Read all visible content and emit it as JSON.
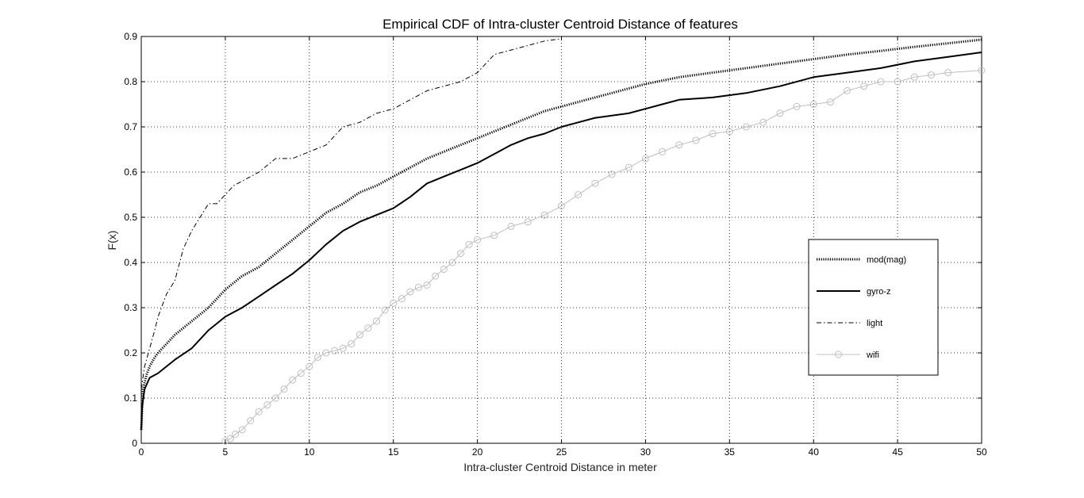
{
  "chart_data": {
    "type": "line",
    "title": "Empirical CDF of Intra-cluster Centroid Distance of features",
    "xlabel": "Intra-cluster Centroid Distance in meter",
    "ylabel": "F(x)",
    "xlim": [
      0,
      50
    ],
    "ylim": [
      0,
      0.9
    ],
    "xticks": [
      0,
      5,
      10,
      15,
      20,
      25,
      30,
      35,
      40,
      45,
      50
    ],
    "yticks": [
      0,
      0.1,
      0.2,
      0.3,
      0.4,
      0.5,
      0.6,
      0.7,
      0.8,
      0.9
    ],
    "grid": true,
    "legend_position": "right",
    "series": [
      {
        "name": "mod(mag)",
        "style": "dotted-thick",
        "color": "#000000",
        "x": [
          0,
          0.1,
          0.3,
          0.5,
          0.8,
          1,
          1.5,
          2,
          3,
          4,
          5,
          6,
          7,
          8,
          9,
          10,
          11,
          12,
          13,
          14,
          15,
          16,
          17,
          18,
          19,
          20,
          21,
          22,
          23,
          24,
          25,
          26,
          27,
          28,
          29,
          30,
          32,
          34,
          36,
          38,
          40,
          42,
          44,
          46,
          48,
          50
        ],
        "y": [
          0.03,
          0.12,
          0.15,
          0.17,
          0.19,
          0.2,
          0.22,
          0.24,
          0.27,
          0.3,
          0.34,
          0.37,
          0.39,
          0.42,
          0.45,
          0.48,
          0.51,
          0.53,
          0.555,
          0.57,
          0.59,
          0.61,
          0.63,
          0.645,
          0.66,
          0.675,
          0.69,
          0.705,
          0.72,
          0.735,
          0.745,
          0.755,
          0.765,
          0.775,
          0.785,
          0.795,
          0.81,
          0.82,
          0.83,
          0.84,
          0.85,
          0.86,
          0.868,
          0.877,
          0.885,
          0.893
        ]
      },
      {
        "name": "gyro-z",
        "style": "solid",
        "color": "#000000",
        "x": [
          0,
          0.05,
          0.2,
          0.5,
          1,
          1.5,
          2,
          3,
          4,
          5,
          6,
          7,
          8,
          9,
          10,
          11,
          12,
          13,
          14,
          15,
          16,
          17,
          18,
          19,
          20,
          21,
          22,
          23,
          24,
          25,
          26,
          27,
          28,
          29,
          30,
          31,
          32,
          34,
          36,
          38,
          40,
          42,
          44,
          46,
          48,
          50
        ],
        "y": [
          0.03,
          0.08,
          0.12,
          0.145,
          0.155,
          0.17,
          0.185,
          0.21,
          0.25,
          0.28,
          0.3,
          0.325,
          0.35,
          0.375,
          0.405,
          0.44,
          0.47,
          0.49,
          0.505,
          0.52,
          0.545,
          0.575,
          0.59,
          0.605,
          0.62,
          0.64,
          0.66,
          0.675,
          0.685,
          0.7,
          0.71,
          0.72,
          0.725,
          0.73,
          0.74,
          0.75,
          0.76,
          0.765,
          0.775,
          0.79,
          0.81,
          0.82,
          0.83,
          0.845,
          0.855,
          0.865
        ]
      },
      {
        "name": "light",
        "style": "dashdot",
        "color": "#000000",
        "x": [
          0,
          0.2,
          0.5,
          0.8,
          1,
          1.5,
          2,
          2.5,
          3,
          3.5,
          4,
          4.5,
          5,
          5.5,
          6,
          7,
          8,
          9,
          10,
          11,
          12,
          13,
          14,
          15,
          16,
          17,
          18,
          19,
          20,
          21,
          22,
          23,
          24,
          25
        ],
        "y": [
          0.12,
          0.17,
          0.21,
          0.25,
          0.28,
          0.33,
          0.36,
          0.43,
          0.47,
          0.5,
          0.53,
          0.53,
          0.55,
          0.57,
          0.58,
          0.6,
          0.63,
          0.63,
          0.645,
          0.66,
          0.7,
          0.71,
          0.73,
          0.74,
          0.76,
          0.78,
          0.79,
          0.8,
          0.82,
          0.86,
          0.87,
          0.88,
          0.89,
          0.895
        ]
      },
      {
        "name": "wifi",
        "style": "solid-circle-markers",
        "color": "#bfbfbf",
        "x": [
          5,
          5.3,
          5.6,
          6,
          6.5,
          7,
          7.5,
          8,
          8.5,
          9,
          9.5,
          10,
          10.5,
          11,
          11.5,
          12,
          12.5,
          13,
          13.5,
          14,
          14.5,
          15,
          15.5,
          16,
          16.5,
          17,
          17.5,
          18,
          18.5,
          19,
          19.5,
          20,
          21,
          22,
          23,
          24,
          25,
          26,
          27,
          28,
          29,
          30,
          31,
          32,
          33,
          34,
          35,
          36,
          37,
          38,
          39,
          40,
          41,
          42,
          43,
          44,
          45,
          46,
          47,
          48,
          50
        ],
        "y": [
          0.005,
          0.01,
          0.02,
          0.03,
          0.05,
          0.07,
          0.085,
          0.1,
          0.12,
          0.14,
          0.155,
          0.17,
          0.19,
          0.2,
          0.205,
          0.21,
          0.22,
          0.24,
          0.255,
          0.27,
          0.295,
          0.31,
          0.32,
          0.335,
          0.345,
          0.35,
          0.37,
          0.385,
          0.4,
          0.42,
          0.44,
          0.45,
          0.46,
          0.48,
          0.49,
          0.505,
          0.525,
          0.55,
          0.575,
          0.595,
          0.61,
          0.63,
          0.645,
          0.66,
          0.67,
          0.685,
          0.69,
          0.7,
          0.71,
          0.73,
          0.745,
          0.75,
          0.755,
          0.78,
          0.79,
          0.8,
          0.8,
          0.81,
          0.815,
          0.82,
          0.825
        ]
      }
    ]
  }
}
